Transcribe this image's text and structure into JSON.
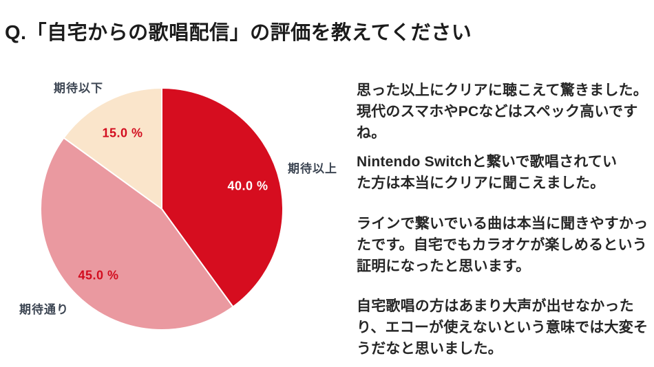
{
  "page": {
    "title": "Q.「自宅からの歌唱配信」の評価を教えてください",
    "background": "#ffffff"
  },
  "chart_data": {
    "type": "pie",
    "title": "Q.「自宅からの歌唱配信」の評価を教えてください",
    "start_angle_deg": 0,
    "direction": "clockwise",
    "legend_position": "none",
    "categories": [
      "期待以上",
      "期待通り",
      "期待以下"
    ],
    "values": [
      40.0,
      45.0,
      15.0
    ],
    "slices": [
      {
        "label": "期待以上",
        "value": 40.0,
        "value_label": "40.0 %",
        "color": "#d60d1f",
        "value_label_color": "#ffffff"
      },
      {
        "label": "期待通り",
        "value": 45.0,
        "value_label": "45.0 %",
        "color": "#ea99a0",
        "value_label_color": "#d20d1f"
      },
      {
        "label": "期待以下",
        "value": 15.0,
        "value_label": "15.0 %",
        "color": "#fae5cb",
        "value_label_color": "#d20d1f"
      }
    ],
    "category_label_color": "#3d4653",
    "slice_border_color": "#ffffff"
  },
  "comments": [
    "思った以上にクリアに聴こえて驚きました。\n現代のスマホやPCなどはスペック高いですね。",
    "Nintendo Switchと繋いで歌唱されてい\nた方は本当にクリアに聞こえました。",
    "ラインで繋いでいる曲は本当に聞きやすかっ\nたです。自宅でもカラオケが楽しめるという\n証明になったと思います。",
    "自宅歌唱の方はあまり大声が出せなかった\nり、エコーが使えないという意味では大変そ\nうだなと思いました。"
  ]
}
